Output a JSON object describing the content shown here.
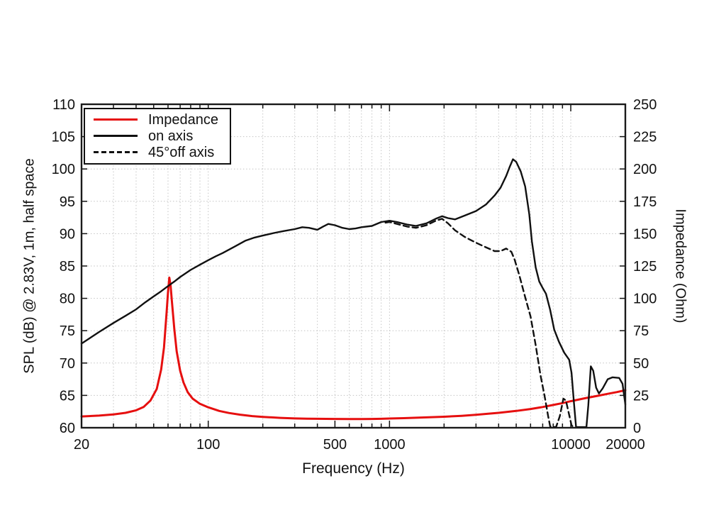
{
  "chart_data": {
    "type": "line",
    "title": "",
    "x_axis": {
      "label": "Frequency (Hz)",
      "scale": "log",
      "min": 20,
      "max": 20000,
      "labeled_ticks": [
        20,
        100,
        500,
        1000,
        10000,
        20000
      ]
    },
    "y_left": {
      "label": "SPL (dB) @ 2.83V, 1m, half space",
      "min": 60,
      "max": 110,
      "step": 5
    },
    "y_right": {
      "label": "Impedance (Ohm)",
      "min": 0,
      "max": 250,
      "step": 25
    },
    "grid": "dotted",
    "legend_position": "top-left",
    "series": [
      {
        "name": "Impedance",
        "id": "impedance",
        "axis": "right",
        "color": "#e60f0f",
        "style": "solid",
        "stroke_width": 3,
        "points": [
          [
            20,
            8.7
          ],
          [
            25,
            9.4
          ],
          [
            30,
            10.3
          ],
          [
            35,
            11.5
          ],
          [
            40,
            13.5
          ],
          [
            44,
            16
          ],
          [
            48,
            21
          ],
          [
            52,
            30
          ],
          [
            55,
            45
          ],
          [
            57,
            62
          ],
          [
            59,
            90
          ],
          [
            60,
            105
          ],
          [
            61,
            116
          ],
          [
            62,
            110
          ],
          [
            63,
            98
          ],
          [
            65,
            76
          ],
          [
            67,
            59
          ],
          [
            70,
            44
          ],
          [
            73,
            35
          ],
          [
            77,
            27.5
          ],
          [
            82,
            22.5
          ],
          [
            90,
            18.5
          ],
          [
            100,
            15.8
          ],
          [
            115,
            13
          ],
          [
            130,
            11.4
          ],
          [
            150,
            10.1
          ],
          [
            175,
            9.0
          ],
          [
            200,
            8.4
          ],
          [
            250,
            7.6
          ],
          [
            300,
            7.2
          ],
          [
            350,
            7.0
          ],
          [
            400,
            6.9
          ],
          [
            500,
            6.8
          ],
          [
            600,
            6.7
          ],
          [
            700,
            6.7
          ],
          [
            800,
            6.8
          ],
          [
            900,
            6.9
          ],
          [
            1000,
            7.1
          ],
          [
            1200,
            7.4
          ],
          [
            1500,
            7.9
          ],
          [
            2000,
            8.5
          ],
          [
            2500,
            9.2
          ],
          [
            3000,
            10.0
          ],
          [
            3500,
            10.8
          ],
          [
            4000,
            11.5
          ],
          [
            5000,
            13.0
          ],
          [
            6000,
            14.5
          ],
          [
            7000,
            16.0
          ],
          [
            8000,
            17.6
          ],
          [
            9000,
            19.0
          ],
          [
            10000,
            20.5
          ],
          [
            12000,
            22.8
          ],
          [
            14000,
            24.6
          ],
          [
            16000,
            26.2
          ],
          [
            18000,
            27.6
          ],
          [
            20000,
            29.0
          ]
        ]
      },
      {
        "name": "on axis",
        "id": "on-axis",
        "axis": "left",
        "color": "#101010",
        "style": "solid",
        "stroke_width": 2.4,
        "points": [
          [
            20,
            73.0
          ],
          [
            25,
            74.8
          ],
          [
            30,
            76.2
          ],
          [
            35,
            77.3
          ],
          [
            40,
            78.3
          ],
          [
            45,
            79.4
          ],
          [
            50,
            80.3
          ],
          [
            55,
            81.1
          ],
          [
            60,
            81.9
          ],
          [
            65,
            82.6
          ],
          [
            70,
            83.3
          ],
          [
            80,
            84.4
          ],
          [
            90,
            85.2
          ],
          [
            100,
            85.9
          ],
          [
            110,
            86.5
          ],
          [
            120,
            87.0
          ],
          [
            140,
            88.0
          ],
          [
            160,
            88.9
          ],
          [
            180,
            89.4
          ],
          [
            200,
            89.7
          ],
          [
            230,
            90.1
          ],
          [
            260,
            90.4
          ],
          [
            300,
            90.7
          ],
          [
            330,
            91.0
          ],
          [
            360,
            90.9
          ],
          [
            400,
            90.6
          ],
          [
            430,
            91.1
          ],
          [
            460,
            91.5
          ],
          [
            500,
            91.3
          ],
          [
            550,
            90.9
          ],
          [
            600,
            90.7
          ],
          [
            650,
            90.8
          ],
          [
            700,
            91.0
          ],
          [
            800,
            91.2
          ],
          [
            900,
            91.8
          ],
          [
            1000,
            92.0
          ],
          [
            1100,
            91.8
          ],
          [
            1250,
            91.4
          ],
          [
            1400,
            91.2
          ],
          [
            1600,
            91.6
          ],
          [
            1800,
            92.3
          ],
          [
            1950,
            92.7
          ],
          [
            2100,
            92.4
          ],
          [
            2300,
            92.2
          ],
          [
            2600,
            92.8
          ],
          [
            3000,
            93.5
          ],
          [
            3400,
            94.5
          ],
          [
            3800,
            95.9
          ],
          [
            4100,
            97.1
          ],
          [
            4400,
            98.9
          ],
          [
            4600,
            100.3
          ],
          [
            4800,
            101.5
          ],
          [
            5000,
            101.1
          ],
          [
            5300,
            99.6
          ],
          [
            5600,
            97.3
          ],
          [
            5900,
            93.0
          ],
          [
            6100,
            88.8
          ],
          [
            6400,
            84.8
          ],
          [
            6700,
            82.6
          ],
          [
            7000,
            81.6
          ],
          [
            7300,
            80.7
          ],
          [
            7700,
            78.2
          ],
          [
            8100,
            75.2
          ],
          [
            8600,
            73.3
          ],
          [
            9200,
            71.6
          ],
          [
            9800,
            70.5
          ],
          [
            10100,
            68.5
          ],
          [
            10400,
            64.0
          ],
          [
            10700,
            60.1
          ],
          [
            12200,
            60.1
          ],
          [
            12500,
            63.5
          ],
          [
            12900,
            69.5
          ],
          [
            13300,
            68.8
          ],
          [
            13800,
            66.2
          ],
          [
            14300,
            65.3
          ],
          [
            15000,
            66.1
          ],
          [
            16000,
            67.5
          ],
          [
            17000,
            67.8
          ],
          [
            18500,
            67.7
          ],
          [
            19300,
            66.8
          ],
          [
            20000,
            63.6
          ]
        ]
      },
      {
        "name": "45°off axis",
        "id": "off-axis-45",
        "axis": "left",
        "color": "#101010",
        "style": "dashed",
        "stroke_width": 2.4,
        "points": [
          [
            950,
            91.7
          ],
          [
            1000,
            91.8
          ],
          [
            1100,
            91.5
          ],
          [
            1250,
            91.1
          ],
          [
            1400,
            90.9
          ],
          [
            1600,
            91.3
          ],
          [
            1800,
            92.0
          ],
          [
            1950,
            92.3
          ],
          [
            2100,
            91.6
          ],
          [
            2300,
            90.5
          ],
          [
            2600,
            89.5
          ],
          [
            3000,
            88.6
          ],
          [
            3400,
            87.9
          ],
          [
            3800,
            87.3
          ],
          [
            4100,
            87.3
          ],
          [
            4400,
            87.7
          ],
          [
            4700,
            87.2
          ],
          [
            4900,
            86.0
          ],
          [
            5200,
            83.6
          ],
          [
            5600,
            80.2
          ],
          [
            6000,
            77.2
          ],
          [
            6400,
            72.8
          ],
          [
            6800,
            68.2
          ],
          [
            7200,
            64.6
          ],
          [
            7500,
            61.8
          ],
          [
            7700,
            60.2
          ],
          [
            8300,
            60.1
          ],
          [
            8700,
            61.8
          ],
          [
            9100,
            64.5
          ],
          [
            9400,
            64.2
          ],
          [
            9700,
            62.5
          ],
          [
            10100,
            60.4
          ],
          [
            10400,
            60.0
          ]
        ]
      }
    ]
  },
  "colors": {
    "impedance_red": "#e60f0f",
    "trace_black": "#101010",
    "grid_gray": "#c4c4c4",
    "frame": "#1a1a1a"
  }
}
